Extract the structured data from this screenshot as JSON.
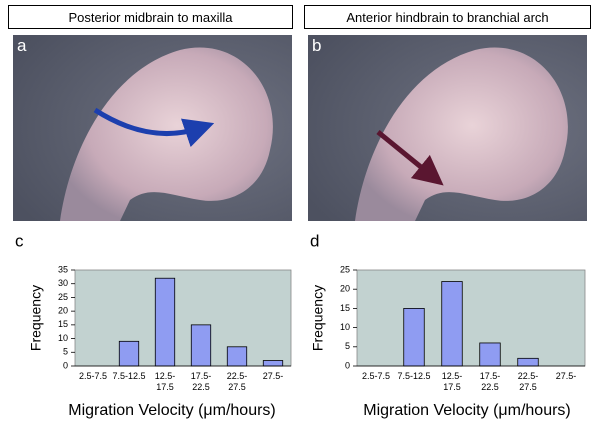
{
  "panels": [
    {
      "label": "a",
      "title": "Posterior midbrain to maxilla"
    },
    {
      "label": "b",
      "title": "Anterior hindbrain to branchial arch"
    }
  ],
  "chart_data": [
    {
      "type": "bar",
      "label": "c",
      "y_label": "Frequency",
      "x_label": "Migration Velocity (μm/hours)",
      "categories": [
        "2.5-7.5",
        "7.5-12.5",
        "12.5-17.5",
        "17.5-22.5",
        "22.5-27.5",
        "27.5-"
      ],
      "values": [
        0,
        9,
        32,
        15,
        7,
        2
      ],
      "color": "#8f9cf2",
      "background": "#c2d2d0",
      "ylim": [
        0,
        35
      ],
      "yticks": [
        0,
        5,
        10,
        15,
        20,
        25,
        30,
        35
      ]
    },
    {
      "type": "bar",
      "label": "d",
      "y_label": "Frequency",
      "x_label": "Migration Velocity (μm/hours)",
      "categories": [
        "2.5-7.5",
        "7.5-12.5",
        "12.5-17.5",
        "17.5-22.5",
        "22.5-27.5",
        "27.5-"
      ],
      "values": [
        0,
        15,
        22,
        6,
        2,
        0
      ],
      "color": "#8f9cf2",
      "background": "#c2d2d0",
      "ylim": [
        0,
        25
      ],
      "yticks": [
        0,
        5,
        10,
        15,
        20,
        25
      ]
    }
  ]
}
